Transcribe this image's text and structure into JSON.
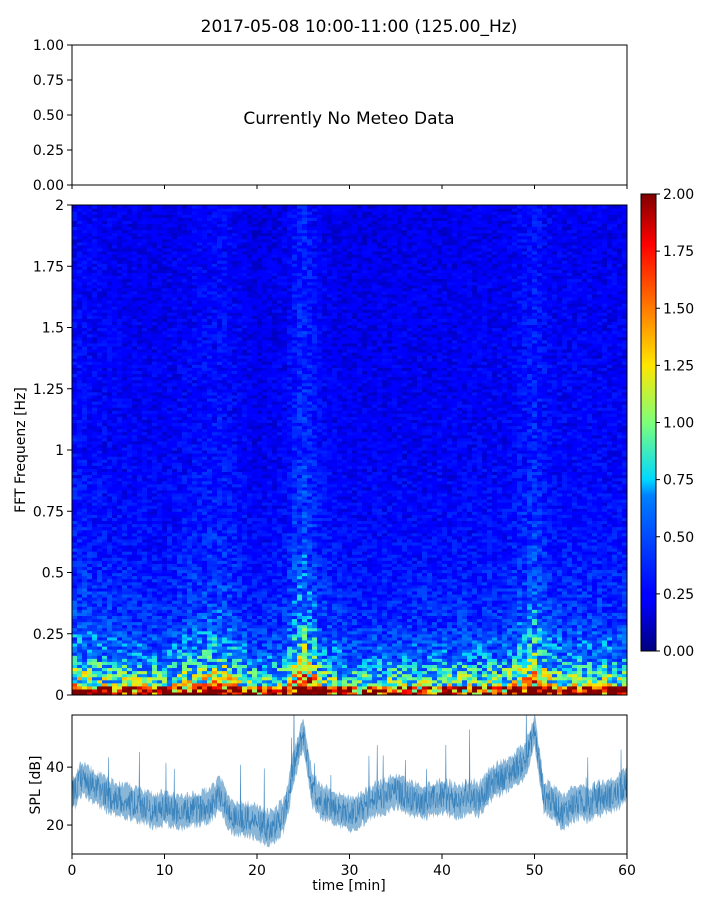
{
  "figure": {
    "title": "2017-05-08 10:00-11:00 (125.00_Hz)"
  },
  "chart_data": [
    {
      "type": "line",
      "panel": "meteo",
      "annotation": "Currently No Meteo Data",
      "ylim": [
        0,
        1
      ],
      "yticks": [
        "0.00",
        "0.25",
        "0.50",
        "0.75",
        "1.00"
      ],
      "xlim": [
        0,
        60
      ],
      "series": []
    },
    {
      "type": "heatmap",
      "panel": "spectrogram",
      "ylabel": "FFT Frequenz [Hz]",
      "ylim": [
        0,
        2
      ],
      "yticks": [
        "0",
        "0.25",
        "0.5",
        "0.75",
        "1",
        "1.25",
        "1.5",
        "1.75",
        "2"
      ],
      "xlim": [
        0,
        60
      ],
      "colormap": "jet",
      "colorbar": {
        "range": [
          0,
          2
        ],
        "ticks": [
          "0.00",
          "0.25",
          "0.50",
          "0.75",
          "1.00",
          "1.25",
          "1.50",
          "1.75",
          "2.00"
        ]
      },
      "time_profile": [
        {
          "t": 0,
          "v": 0.42
        },
        {
          "t": 5,
          "v": 0.36
        },
        {
          "t": 10,
          "v": 0.34
        },
        {
          "t": 14,
          "v": 0.42
        },
        {
          "t": 16,
          "v": 0.46
        },
        {
          "t": 20,
          "v": 0.3
        },
        {
          "t": 23,
          "v": 0.36
        },
        {
          "t": 25,
          "v": 0.6
        },
        {
          "t": 27,
          "v": 0.38
        },
        {
          "t": 30,
          "v": 0.32
        },
        {
          "t": 40,
          "v": 0.34
        },
        {
          "t": 47,
          "v": 0.36
        },
        {
          "t": 50,
          "v": 0.52
        },
        {
          "t": 52,
          "v": 0.38
        },
        {
          "t": 60,
          "v": 0.36
        }
      ],
      "freq_profile": [
        {
          "f": 0.0,
          "v": 1.5
        },
        {
          "f": 0.05,
          "v": 1.0
        },
        {
          "f": 0.15,
          "v": 0.6
        },
        {
          "f": 0.3,
          "v": 0.42
        },
        {
          "f": 0.6,
          "v": 0.3
        },
        {
          "f": 1.0,
          "v": 0.24
        },
        {
          "f": 2.0,
          "v": 0.2
        }
      ]
    },
    {
      "type": "line",
      "panel": "spl",
      "xlabel": "time [min]",
      "ylabel": "SPL [dB]",
      "xlim": [
        0,
        60
      ],
      "ylim": [
        10,
        58
      ],
      "xticks": [
        "0",
        "10",
        "20",
        "30",
        "40",
        "50",
        "60"
      ],
      "yticks": [
        "20",
        "40"
      ],
      "color": "#2a7ab8",
      "series": [
        {
          "x": [
            0,
            1,
            2,
            3,
            4,
            5,
            6,
            7,
            8,
            9,
            10,
            11,
            12,
            13,
            14,
            15,
            16,
            17,
            18,
            19,
            20,
            21,
            22,
            23,
            24,
            25,
            26,
            27,
            28,
            29,
            30,
            31,
            32,
            33,
            34,
            35,
            36,
            37,
            38,
            39,
            40,
            41,
            42,
            43,
            44,
            45,
            46,
            47,
            48,
            49,
            50,
            51,
            52,
            53,
            54,
            55,
            56,
            57,
            58,
            59,
            60
          ],
          "y": [
            30,
            36,
            34,
            32,
            30,
            29,
            28,
            27,
            26,
            25,
            26,
            25,
            24,
            25,
            26,
            27,
            31,
            24,
            22,
            22,
            21,
            19,
            20,
            24,
            40,
            52,
            32,
            28,
            27,
            25,
            24,
            25,
            27,
            29,
            30,
            32,
            30,
            29,
            28,
            29,
            30,
            29,
            28,
            30,
            29,
            33,
            36,
            37,
            40,
            42,
            53,
            30,
            28,
            24,
            27,
            28,
            27,
            29,
            30,
            31,
            34
          ]
        }
      ]
    }
  ]
}
